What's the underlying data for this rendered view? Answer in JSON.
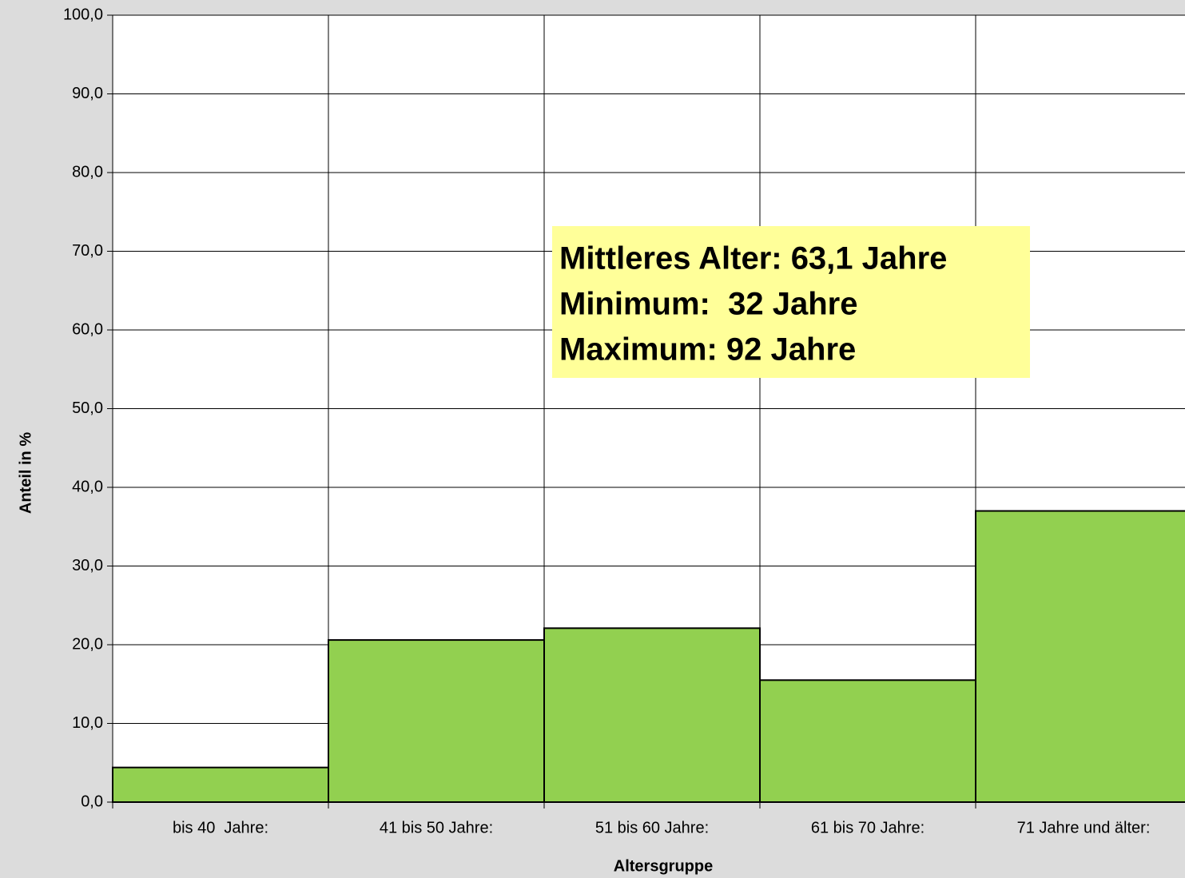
{
  "chart_data": {
    "type": "bar",
    "x_label": "Altersgruppe",
    "y_label": "Anteil in %",
    "categories": [
      "bis 40  Jahre:",
      "41 bis 50 Jahre:",
      "51 bis 60 Jahre:",
      "61 bis 70 Jahre:",
      "71 Jahre und älter:"
    ],
    "values": [
      4.4,
      20.6,
      22.1,
      15.5,
      37.0
    ],
    "color": "#92d050",
    "ylim": [
      0,
      100
    ],
    "yticks": [
      {
        "value": 0,
        "label": "0,0"
      },
      {
        "value": 10,
        "label": "10,0"
      },
      {
        "value": 20,
        "label": "20,0"
      },
      {
        "value": 30,
        "label": "30,0"
      },
      {
        "value": 40,
        "label": "40,0"
      },
      {
        "value": 50,
        "label": "50,0"
      },
      {
        "value": 60,
        "label": "60,0"
      },
      {
        "value": 70,
        "label": "70,0"
      },
      {
        "value": 80,
        "label": "80,0"
      },
      {
        "value": 90,
        "label": "90,0"
      },
      {
        "value": 100,
        "label": "100,0"
      }
    ],
    "grid": true,
    "annotation": [
      "Mittleres Alter: 63,1 Jahre",
      "Minimum:  32 Jahre",
      "Maximum: 92 Jahre"
    ]
  }
}
